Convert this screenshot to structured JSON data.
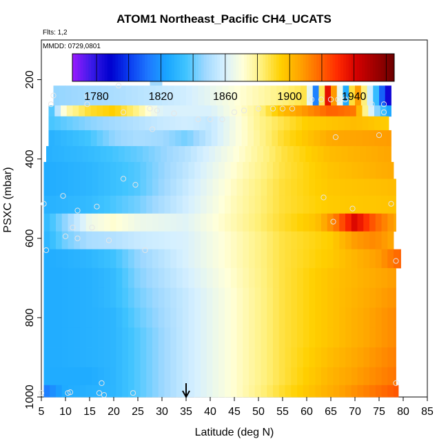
{
  "chart_data": {
    "type": "heatmap",
    "title": "ATOM1 Northeast_Pacific CH4_UCATS",
    "notes": {
      "flights": "Flts: 1,2",
      "dates": "MMDD: 0729,0801"
    },
    "xlabel": "Latitude (deg N)",
    "ylabel": "PSXC (mbar)",
    "xlim": [
      5,
      85
    ],
    "ylim": [
      1000,
      100
    ],
    "y_reversed": true,
    "xticks": [
      "5",
      "10",
      "15",
      "20",
      "25",
      "30",
      "35",
      "40",
      "45",
      "50",
      "55",
      "60",
      "65",
      "70",
      "75",
      "80",
      "85"
    ],
    "yticks": [
      "200",
      "400",
      "600",
      "800",
      "1000"
    ],
    "colorbar": {
      "ticks": [
        "1780",
        "1820",
        "1860",
        "1900",
        "1940"
      ],
      "range": [
        1765,
        1965
      ],
      "colors": [
        "#9a1aff",
        "#3b1be8",
        "#0000cf",
        "#0a3cf0",
        "#1e78ff",
        "#19a6ff",
        "#40c4ff",
        "#9ed8ff",
        "#d6f0ff",
        "#ffffd9",
        "#fff07a",
        "#ffd000",
        "#ffa500",
        "#ff6a00",
        "#ff2a00",
        "#d40000",
        "#9e0000",
        "#6b0000"
      ]
    },
    "marker": {
      "x": 35,
      "label": "arrow"
    },
    "band_centers_mbar": [
      180,
      250,
      280,
      305,
      350,
      385,
      430,
      470,
      515,
      560,
      605,
      650,
      700,
      750,
      800,
      850,
      900,
      950,
      990
    ],
    "band_rows": [
      {
        "p": 180,
        "x0": 27.5,
        "x1": 30,
        "lat": [
          27.5,
          30
        ],
        "ch4": [
          1848,
          1848
        ]
      },
      {
        "p": 250,
        "x0": 7.5,
        "x1": 77.5,
        "lat": [
          7.5,
          20,
          35,
          45,
          55,
          60,
          62,
          64,
          66,
          68,
          70,
          72,
          74,
          76,
          77.5
        ],
        "ch4": [
          1846,
          1850,
          1858,
          1870,
          1882,
          1888,
          1810,
          1945,
          1900,
          1820,
          1920,
          1880,
          1840,
          1800,
          1775
        ]
      },
      {
        "p": 280,
        "x0": 6.5,
        "x1": 77.5,
        "lat": [
          6.5,
          10,
          15,
          20,
          25,
          30,
          40,
          50,
          55,
          60,
          65,
          70,
          74,
          77.5
        ],
        "ch4": [
          1830,
          1875,
          1890,
          1895,
          1880,
          1860,
          1860,
          1880,
          1900,
          1910,
          1920,
          1915,
          1850,
          1820
        ]
      },
      {
        "p": 305,
        "x0": 6.5,
        "x1": 77,
        "lat": [
          6.5,
          15,
          25,
          30,
          35,
          40,
          50,
          60,
          70,
          77
        ],
        "ch4": [
          1836,
          1845,
          1852,
          1856,
          1858,
          1855,
          1880,
          1895,
          1900,
          1895
        ]
      },
      {
        "p": 350,
        "x0": 6.5,
        "x1": 77.5,
        "lat": [
          6.5,
          15,
          20,
          25,
          30,
          35,
          45,
          55,
          65,
          77.5
        ],
        "ch4": [
          1828,
          1836,
          1846,
          1850,
          1848,
          1842,
          1868,
          1890,
          1905,
          1908
        ]
      },
      {
        "p": 385,
        "x0": 6,
        "x1": 77.5,
        "lat": [
          6,
          15,
          25,
          35,
          45,
          55,
          65,
          77.5
        ],
        "ch4": [
          1828,
          1832,
          1840,
          1852,
          1870,
          1888,
          1900,
          1906
        ]
      },
      {
        "p": 430,
        "x0": 5.5,
        "x1": 78,
        "lat": [
          5.5,
          15,
          25,
          35,
          45,
          55,
          65,
          78
        ],
        "ch4": [
          1826,
          1830,
          1838,
          1854,
          1872,
          1888,
          1898,
          1905
        ]
      },
      {
        "p": 470,
        "x0": 5.5,
        "x1": 78.5,
        "lat": [
          5.5,
          15,
          25,
          35,
          45,
          55,
          65,
          78.5
        ],
        "ch4": [
          1826,
          1830,
          1838,
          1856,
          1874,
          1889,
          1897,
          1900
        ]
      },
      {
        "p": 515,
        "x0": 5.5,
        "x1": 78.5,
        "lat": [
          5.5,
          15,
          25,
          35,
          45,
          55,
          65,
          78.5
        ],
        "ch4": [
          1828,
          1832,
          1842,
          1858,
          1875,
          1889,
          1896,
          1898
        ]
      },
      {
        "p": 560,
        "x0": 5.5,
        "x1": 78.5,
        "lat": [
          5.5,
          10,
          15,
          20,
          25,
          35,
          45,
          55,
          62,
          66,
          70,
          74,
          78.5
        ],
        "ch4": [
          1830,
          1846,
          1866,
          1872,
          1866,
          1862,
          1876,
          1890,
          1898,
          1915,
          1940,
          1920,
          1905
        ]
      },
      {
        "p": 605,
        "x0": 5.5,
        "x1": 78,
        "lat": [
          5.5,
          10,
          15,
          20,
          25,
          35,
          45,
          55,
          65,
          70,
          74,
          78
        ],
        "ch4": [
          1828,
          1842,
          1850,
          1852,
          1856,
          1860,
          1874,
          1888,
          1895,
          1908,
          1912,
          1905
        ]
      },
      {
        "p": 650,
        "x0": 5.5,
        "x1": 79.5,
        "lat": [
          5.5,
          15,
          20,
          25,
          35,
          45,
          55,
          65,
          75,
          79.5
        ],
        "ch4": [
          1826,
          1830,
          1835,
          1846,
          1860,
          1874,
          1888,
          1896,
          1908,
          1920
        ]
      },
      {
        "p": 700,
        "x0": 5.5,
        "x1": 78.5,
        "lat": [
          5.5,
          15,
          20,
          25,
          35,
          45,
          55,
          65,
          78.5
        ],
        "ch4": [
          1826,
          1828,
          1832,
          1844,
          1858,
          1873,
          1888,
          1898,
          1908
        ]
      },
      {
        "p": 750,
        "x0": 5.5,
        "x1": 78.5,
        "lat": [
          5.5,
          15,
          20,
          25,
          35,
          45,
          55,
          65,
          78.5
        ],
        "ch4": [
          1826,
          1828,
          1832,
          1842,
          1856,
          1872,
          1888,
          1898,
          1910
        ]
      },
      {
        "p": 800,
        "x0": 5.5,
        "x1": 78.5,
        "lat": [
          5.5,
          15,
          20,
          25,
          35,
          45,
          55,
          65,
          78.5
        ],
        "ch4": [
          1826,
          1828,
          1830,
          1840,
          1856,
          1872,
          1888,
          1898,
          1912
        ]
      },
      {
        "p": 850,
        "x0": 5.5,
        "x1": 78.5,
        "lat": [
          5.5,
          15,
          20,
          25,
          35,
          45,
          55,
          65,
          78.5
        ],
        "ch4": [
          1826,
          1828,
          1830,
          1838,
          1856,
          1872,
          1888,
          1898,
          1912
        ]
      },
      {
        "p": 900,
        "x0": 5.5,
        "x1": 78.5,
        "lat": [
          5.5,
          15,
          20,
          25,
          35,
          45,
          55,
          65,
          78.5
        ],
        "ch4": [
          1826,
          1828,
          1830,
          1838,
          1856,
          1872,
          1888,
          1900,
          1914
        ]
      },
      {
        "p": 950,
        "x0": 5.5,
        "x1": 78.5,
        "lat": [
          5.5,
          15,
          20,
          25,
          35,
          45,
          55,
          65,
          78.5
        ],
        "ch4": [
          1826,
          1826,
          1830,
          1838,
          1856,
          1872,
          1888,
          1902,
          1916
        ]
      },
      {
        "p": 990,
        "x0": 5.5,
        "x1": 79,
        "lat": [
          5.5,
          10,
          15,
          20,
          25,
          35,
          45,
          55,
          65,
          79
        ],
        "ch4": [
          1812,
          1826,
          1828,
          1830,
          1838,
          1856,
          1872,
          1890,
          1904,
          1922
        ]
      }
    ],
    "samples": [
      {
        "lat": 7.5,
        "p": 240
      },
      {
        "lat": 7,
        "p": 262
      },
      {
        "lat": 14.5,
        "p": 240
      },
      {
        "lat": 14.5,
        "p": 262
      },
      {
        "lat": 21,
        "p": 215
      },
      {
        "lat": 22,
        "p": 282
      },
      {
        "lat": 27,
        "p": 198
      },
      {
        "lat": 27.5,
        "p": 273
      },
      {
        "lat": 29,
        "p": 278
      },
      {
        "lat": 30,
        "p": 198
      },
      {
        "lat": 32.5,
        "p": 285
      },
      {
        "lat": 37.5,
        "p": 300
      },
      {
        "lat": 40,
        "p": 300
      },
      {
        "lat": 42.5,
        "p": 300
      },
      {
        "lat": 45,
        "p": 282
      },
      {
        "lat": 47,
        "p": 278
      },
      {
        "lat": 50,
        "p": 273
      },
      {
        "lat": 53,
        "p": 273
      },
      {
        "lat": 55,
        "p": 273
      },
      {
        "lat": 57,
        "p": 273
      },
      {
        "lat": 61,
        "p": 250
      },
      {
        "lat": 63,
        "p": 250
      },
      {
        "lat": 65,
        "p": 250
      },
      {
        "lat": 66.5,
        "p": 250
      },
      {
        "lat": 68,
        "p": 250
      },
      {
        "lat": 73.5,
        "p": 262
      },
      {
        "lat": 76,
        "p": 262
      },
      {
        "lat": 76,
        "p": 282
      },
      {
        "lat": 75,
        "p": 340
      },
      {
        "lat": 66,
        "p": 345
      },
      {
        "lat": 28,
        "p": 325
      },
      {
        "lat": 22,
        "p": 450
      },
      {
        "lat": 24.5,
        "p": 465
      },
      {
        "lat": 9.5,
        "p": 493
      },
      {
        "lat": 5.5,
        "p": 513
      },
      {
        "lat": 12.5,
        "p": 530
      },
      {
        "lat": 16.5,
        "p": 520
      },
      {
        "lat": 11.5,
        "p": 573
      },
      {
        "lat": 15.5,
        "p": 573
      },
      {
        "lat": 10,
        "p": 595
      },
      {
        "lat": 12.5,
        "p": 600
      },
      {
        "lat": 19,
        "p": 605
      },
      {
        "lat": 6,
        "p": 630
      },
      {
        "lat": 26.5,
        "p": 630
      },
      {
        "lat": 63.5,
        "p": 497
      },
      {
        "lat": 65.5,
        "p": 558
      },
      {
        "lat": 69.5,
        "p": 525
      },
      {
        "lat": 77.5,
        "p": 513
      },
      {
        "lat": 78.5,
        "p": 657
      },
      {
        "lat": 17.5,
        "p": 965
      },
      {
        "lat": 17,
        "p": 990
      },
      {
        "lat": 18,
        "p": 995
      },
      {
        "lat": 11,
        "p": 988
      },
      {
        "lat": 10.5,
        "p": 990
      },
      {
        "lat": 5,
        "p": 990
      },
      {
        "lat": 24,
        "p": 990
      },
      {
        "lat": 78.5,
        "p": 965
      }
    ]
  }
}
